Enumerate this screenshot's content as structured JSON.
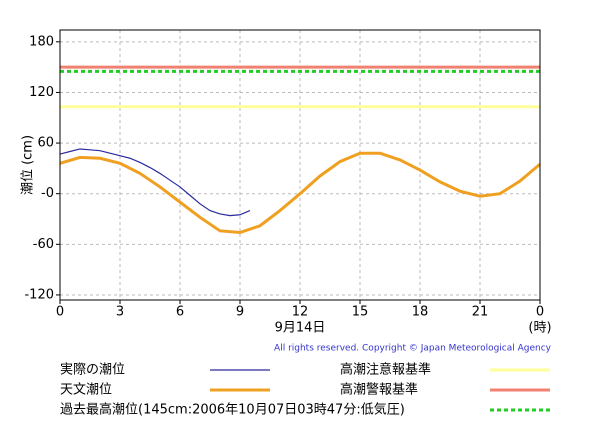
{
  "chart_data": {
    "type": "line",
    "y_label": "潮位 (cm)",
    "x_label": "9月14日",
    "x_unit": "(時)",
    "copyright": "All rights reserved. Copyright © Japan Meteorological Agency",
    "xlim": [
      0,
      24
    ],
    "xticks": [
      0,
      3,
      6,
      9,
      12,
      15,
      18,
      21,
      {
        "value": 24,
        "label": "0"
      }
    ],
    "ylim": [
      -126,
      194
    ],
    "yticks": [
      180,
      120,
      60,
      {
        "value": 0,
        "label": "-0"
      },
      -60,
      -120
    ],
    "grid": true,
    "series": [
      {
        "name": "実際の潮位",
        "color": "#2a2aa0",
        "x": [
          0,
          0.5,
          1,
          1.5,
          2,
          2.5,
          3,
          3.5,
          4,
          4.5,
          5,
          5.5,
          6,
          6.5,
          7,
          7.5,
          8,
          8.5,
          9,
          9.5
        ],
        "values": [
          47,
          50,
          53,
          52,
          51,
          48,
          45,
          42,
          37,
          31,
          24,
          16,
          8,
          -2,
          -12,
          -20,
          -24,
          -26,
          -25,
          -20
        ]
      },
      {
        "name": "天文潮位",
        "color": "#f0a020",
        "x": [
          0,
          1,
          2,
          3,
          4,
          5,
          6,
          7,
          8,
          9,
          10,
          11,
          12,
          13,
          14,
          15,
          16,
          17,
          18,
          19,
          20,
          21,
          22,
          23,
          24
        ],
        "values": [
          36,
          43,
          42,
          36,
          24,
          8,
          -10,
          -28,
          -44,
          -46,
          -38,
          -20,
          0,
          21,
          38,
          48,
          48,
          40,
          28,
          14,
          3,
          -3,
          0,
          15,
          35
        ]
      }
    ],
    "hlines": [
      {
        "name": "高潮注意報基準",
        "color": "#ffff99",
        "value": 103,
        "style": "solid"
      },
      {
        "name": "高潮警報基準",
        "color": "#f08070",
        "value": 150,
        "style": "solid"
      },
      {
        "name": "過去最高潮位(145cm:2006年10月07日03時47分:低気圧)",
        "color": "#22cc22",
        "value": 145,
        "style": "dashed"
      }
    ]
  }
}
